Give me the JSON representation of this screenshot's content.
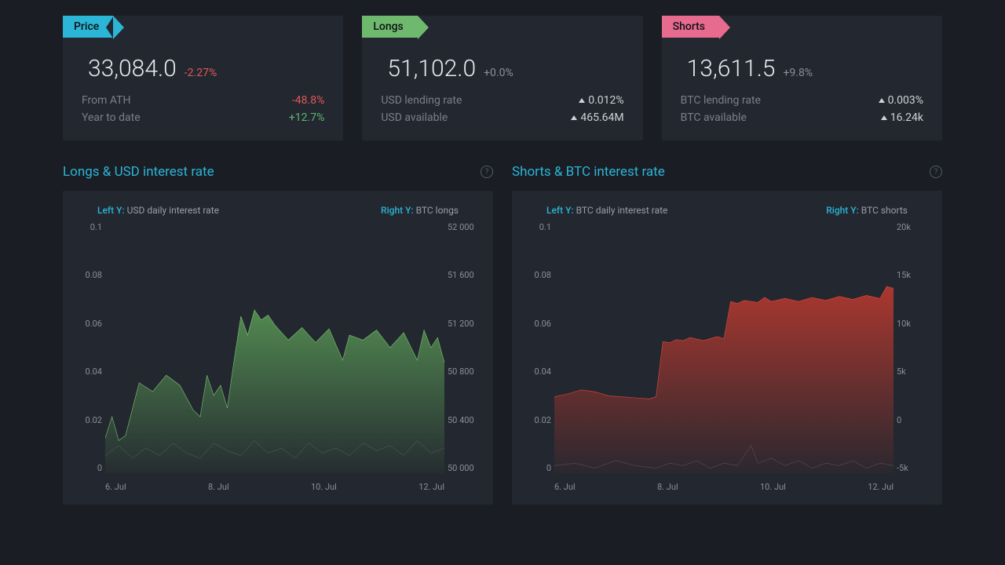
{
  "cards": {
    "price": {
      "ribbon": "Price",
      "ribbon_color": "#2bb5d6",
      "value": "33,084.0",
      "change": "-2.27%",
      "change_color": "#e15a5a",
      "rows": [
        {
          "label": "From ATH",
          "value": "-48.8%",
          "value_color": "#e15a5a",
          "arrow": false
        },
        {
          "label": "Year to date",
          "value": "+12.7%",
          "value_color": "#5fb873",
          "arrow": false
        }
      ]
    },
    "longs": {
      "ribbon": "Longs",
      "ribbon_color": "#6fb96f",
      "value": "51,102.0",
      "change": "+0.0%",
      "change_color": "#8a8f99",
      "rows": [
        {
          "label": "USD lending rate",
          "value": "0.012%",
          "value_color": "#cfd2d7",
          "arrow": true
        },
        {
          "label": "USD available",
          "value": "465.64M",
          "value_color": "#cfd2d7",
          "arrow": true
        }
      ]
    },
    "shorts": {
      "ribbon": "Shorts",
      "ribbon_color": "#e76a8f",
      "value": "13,611.5",
      "change": "+9.8%",
      "change_color": "#8a8f99",
      "rows": [
        {
          "label": "BTC lending rate",
          "value": "0.003%",
          "value_color": "#cfd2d7",
          "arrow": true
        },
        {
          "label": "BTC available",
          "value": "16.24k",
          "value_color": "#cfd2d7",
          "arrow": true
        }
      ]
    }
  },
  "charts": {
    "longs": {
      "title": "Longs & USD interest rate",
      "left_y_prefix": "Left Y:",
      "left_y_label": "USD daily interest rate",
      "right_y_prefix": "Right Y:",
      "right_y_label": "BTC longs",
      "left_y": {
        "min": 0,
        "max": 0.1,
        "ticks": [
          "0.1",
          "0.08",
          "0.06",
          "0.04",
          "0.02",
          "0"
        ]
      },
      "right_y": {
        "min": 50000,
        "max": 52000,
        "ticks": [
          "52 000",
          "51 600",
          "51 200",
          "50 800",
          "50 400",
          "50 000"
        ]
      },
      "x_ticks": [
        "6. Jul",
        "8. Jul",
        "10. Jul",
        "12. Jul"
      ],
      "area_color": "#5a9a57",
      "area_stroke": "#7bc871",
      "rate_stroke": "#9aa0ab",
      "area_points": [
        [
          0,
          50280
        ],
        [
          2,
          50450
        ],
        [
          4,
          50260
        ],
        [
          6,
          50300
        ],
        [
          10,
          50720
        ],
        [
          14,
          50650
        ],
        [
          18,
          50780
        ],
        [
          22,
          50700
        ],
        [
          26,
          50500
        ],
        [
          28,
          50450
        ],
        [
          30,
          50780
        ],
        [
          32,
          50620
        ],
        [
          34,
          50700
        ],
        [
          36,
          50520
        ],
        [
          38,
          50900
        ],
        [
          40,
          51250
        ],
        [
          42,
          51100
        ],
        [
          44,
          51300
        ],
        [
          46,
          51220
        ],
        [
          48,
          51260
        ],
        [
          50,
          51180
        ],
        [
          54,
          51060
        ],
        [
          58,
          51160
        ],
        [
          62,
          51040
        ],
        [
          66,
          51150
        ],
        [
          70,
          50900
        ],
        [
          72,
          51100
        ],
        [
          76,
          51060
        ],
        [
          80,
          51140
        ],
        [
          84,
          51000
        ],
        [
          88,
          51120
        ],
        [
          92,
          50900
        ],
        [
          94,
          51140
        ],
        [
          96,
          51000
        ],
        [
          98,
          51080
        ],
        [
          100,
          50880
        ]
      ],
      "rate_points": [
        [
          0,
          0.007
        ],
        [
          4,
          0.011
        ],
        [
          8,
          0.006
        ],
        [
          12,
          0.01
        ],
        [
          16,
          0.007
        ],
        [
          20,
          0.012
        ],
        [
          24,
          0.008
        ],
        [
          28,
          0.006
        ],
        [
          32,
          0.012
        ],
        [
          36,
          0.009
        ],
        [
          40,
          0.007
        ],
        [
          44,
          0.013
        ],
        [
          48,
          0.008
        ],
        [
          52,
          0.01
        ],
        [
          56,
          0.006
        ],
        [
          60,
          0.012
        ],
        [
          64,
          0.008
        ],
        [
          68,
          0.01
        ],
        [
          72,
          0.007
        ],
        [
          76,
          0.012
        ],
        [
          80,
          0.009
        ],
        [
          84,
          0.011
        ],
        [
          88,
          0.007
        ],
        [
          92,
          0.013
        ],
        [
          96,
          0.008
        ],
        [
          100,
          0.01
        ]
      ]
    },
    "shorts": {
      "title": "Shorts & BTC interest rate",
      "left_y_prefix": "Left Y:",
      "left_y_label": "BTC daily interest rate",
      "right_y_prefix": "Right Y:",
      "right_y_label": "BTC shorts",
      "left_y": {
        "min": 0,
        "max": 0.1,
        "ticks": [
          "0.1",
          "0.08",
          "0.06",
          "0.04",
          "0.02",
          "0"
        ]
      },
      "right_y": {
        "min": -5000,
        "max": 20000,
        "ticks": [
          "20k",
          "15k",
          "10k",
          "5k",
          "0",
          "-5k"
        ]
      },
      "x_ticks": [
        "6. Jul",
        "8. Jul",
        "10. Jul",
        "12. Jul"
      ],
      "area_color": "#c23a2f",
      "area_stroke": "#e24a3a",
      "rate_stroke": "#9aa0ab",
      "area_points": [
        [
          0,
          2600
        ],
        [
          4,
          2900
        ],
        [
          8,
          3300
        ],
        [
          12,
          3100
        ],
        [
          16,
          2700
        ],
        [
          20,
          2600
        ],
        [
          24,
          2500
        ],
        [
          28,
          2400
        ],
        [
          30,
          2600
        ],
        [
          32,
          8100
        ],
        [
          34,
          8000
        ],
        [
          36,
          8300
        ],
        [
          38,
          8200
        ],
        [
          40,
          8500
        ],
        [
          44,
          8200
        ],
        [
          48,
          8600
        ],
        [
          50,
          8400
        ],
        [
          52,
          12100
        ],
        [
          54,
          11900
        ],
        [
          56,
          12200
        ],
        [
          60,
          12000
        ],
        [
          62,
          12500
        ],
        [
          64,
          12100
        ],
        [
          68,
          12400
        ],
        [
          72,
          12100
        ],
        [
          76,
          12500
        ],
        [
          80,
          12200
        ],
        [
          84,
          12600
        ],
        [
          88,
          12300
        ],
        [
          92,
          12700
        ],
        [
          96,
          12400
        ],
        [
          98,
          13600
        ],
        [
          100,
          13400
        ]
      ],
      "rate_points": [
        [
          0,
          0.003
        ],
        [
          6,
          0.004
        ],
        [
          12,
          0.002
        ],
        [
          18,
          0.005
        ],
        [
          24,
          0.003
        ],
        [
          30,
          0.002
        ],
        [
          34,
          0.004
        ],
        [
          38,
          0.003
        ],
        [
          42,
          0.005
        ],
        [
          46,
          0.002
        ],
        [
          50,
          0.004
        ],
        [
          54,
          0.003
        ],
        [
          58,
          0.011
        ],
        [
          60,
          0.004
        ],
        [
          64,
          0.006
        ],
        [
          68,
          0.003
        ],
        [
          72,
          0.005
        ],
        [
          76,
          0.002
        ],
        [
          80,
          0.004
        ],
        [
          84,
          0.003
        ],
        [
          88,
          0.005
        ],
        [
          92,
          0.002
        ],
        [
          96,
          0.004
        ],
        [
          100,
          0.003
        ]
      ]
    }
  },
  "colors": {
    "background": "#1a1d24",
    "panel": "#23272f",
    "accent": "#2bb5d6"
  }
}
